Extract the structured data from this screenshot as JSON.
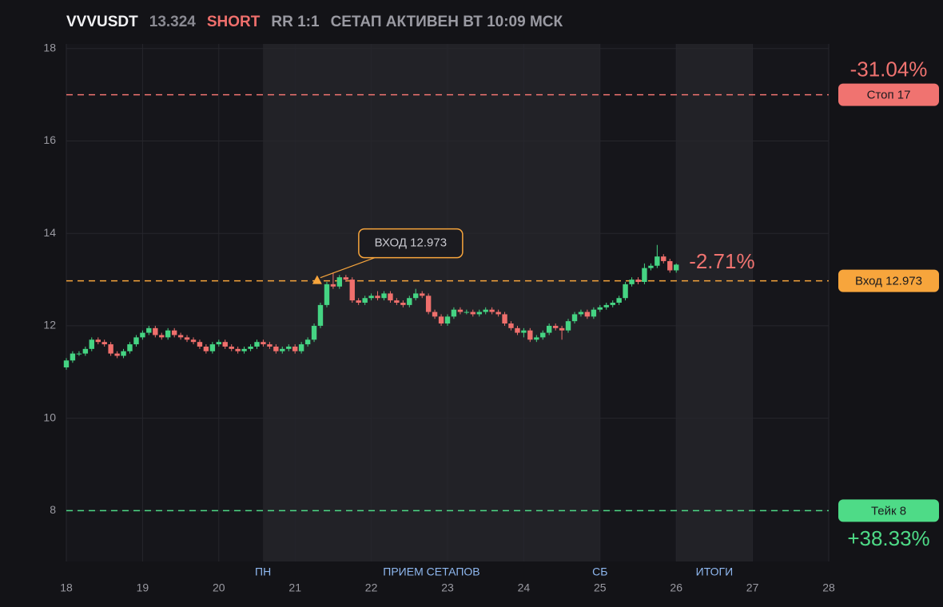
{
  "chart_data": {
    "type": "candlestick",
    "header": {
      "symbol": "VVVUSDT",
      "price": 13.324,
      "side": "SHORT",
      "rr": "RR 1:1",
      "status": "СЕТАП АКТИВЕН ВТ 10:09 МСК"
    },
    "xlim": [
      18,
      28
    ],
    "xticks": [
      18,
      19,
      20,
      21,
      22,
      23,
      24,
      25,
      26,
      27,
      28
    ],
    "ylim": [
      6.9,
      18.1
    ],
    "yticks": [
      8,
      10,
      12,
      14,
      16,
      18
    ],
    "grid": true,
    "up_color": "#45d483",
    "down_color": "#ef6f6c",
    "regions": [
      {
        "start": 20.58,
        "end": 25,
        "label": "ПРИЕМ СЕТАПОВ"
      },
      {
        "start": 26,
        "end": 27,
        "label": "ИТОГИ"
      }
    ],
    "markers": [
      {
        "x": 20.58,
        "label": "ПН"
      },
      {
        "x": 25,
        "label": "СБ"
      }
    ],
    "levels": [
      {
        "value": 17,
        "label": "Стоп 17",
        "color": "#f07370",
        "change": -31.04,
        "change_label": "-31.04%",
        "change_side": "above"
      },
      {
        "value": 12.973,
        "label": "Вход 12.973",
        "color": "#f7a53c"
      },
      {
        "value": 8,
        "label": "Тейк 8",
        "color": "#4edb87",
        "change": 38.33,
        "change_label": "+38.33%",
        "change_side": "below"
      }
    ],
    "entry": {
      "x": 21.29,
      "y": 12.973,
      "text": "ВХОД 12.973",
      "color": "#f7a53c"
    },
    "current_change": {
      "value": -2.71,
      "label": "-2.71%",
      "color": "#f07370"
    },
    "x": [
      18,
      18.083,
      18.167,
      18.25,
      18.333,
      18.417,
      18.5,
      18.583,
      18.667,
      18.75,
      18.833,
      18.917,
      19,
      19.083,
      19.167,
      19.25,
      19.333,
      19.417,
      19.5,
      19.583,
      19.667,
      19.75,
      19.833,
      19.917,
      20,
      20.083,
      20.167,
      20.25,
      20.333,
      20.417,
      20.5,
      20.583,
      20.667,
      20.75,
      20.833,
      20.917,
      21,
      21.083,
      21.167,
      21.25,
      21.333,
      21.417,
      21.5,
      21.583,
      21.667,
      21.75,
      21.833,
      21.917,
      22,
      22.083,
      22.167,
      22.25,
      22.333,
      22.417,
      22.5,
      22.583,
      22.667,
      22.75,
      22.833,
      22.917,
      23,
      23.083,
      23.167,
      23.25,
      23.333,
      23.417,
      23.5,
      23.583,
      23.667,
      23.75,
      23.833,
      23.917,
      24,
      24.083,
      24.167,
      24.25,
      24.333,
      24.417,
      24.5,
      24.583,
      24.667,
      24.75,
      24.833,
      24.917,
      25,
      25.083,
      25.167,
      25.25,
      25.333,
      25.417,
      25.5,
      25.583,
      25.667,
      25.75,
      25.833,
      25.917,
      26
    ],
    "open": [
      11.1,
      11.25,
      11.4,
      11.4,
      11.5,
      11.7,
      11.65,
      11.6,
      11.4,
      11.35,
      11.45,
      11.6,
      11.75,
      11.85,
      11.95,
      11.8,
      11.75,
      11.9,
      11.8,
      11.75,
      11.7,
      11.65,
      11.55,
      11.45,
      11.6,
      11.65,
      11.55,
      11.5,
      11.45,
      11.5,
      11.55,
      11.65,
      11.6,
      11.55,
      11.45,
      11.5,
      11.55,
      11.45,
      11.6,
      11.7,
      12.0,
      12.45,
      12.9,
      12.85,
      13.05,
      13.0,
      12.55,
      12.5,
      12.6,
      12.65,
      12.6,
      12.7,
      12.55,
      12.5,
      12.45,
      12.6,
      12.7,
      12.65,
      12.3,
      12.2,
      12.05,
      12.2,
      12.35,
      12.3,
      12.3,
      12.25,
      12.3,
      12.35,
      12.3,
      12.25,
      12.05,
      11.95,
      11.85,
      11.9,
      11.7,
      11.75,
      11.85,
      12.0,
      11.95,
      11.9,
      12.1,
      12.25,
      12.3,
      12.2,
      12.35,
      12.4,
      12.45,
      12.5,
      12.6,
      12.9,
      13.0,
      12.95,
      13.25,
      13.3,
      13.5,
      13.4,
      13.2
    ],
    "high": [
      11.3,
      11.45,
      11.45,
      11.55,
      11.75,
      11.75,
      11.7,
      11.65,
      11.45,
      11.5,
      11.65,
      11.8,
      11.9,
      12.0,
      12.0,
      11.85,
      11.95,
      11.95,
      11.85,
      11.8,
      11.75,
      11.7,
      11.6,
      11.65,
      11.7,
      11.7,
      11.6,
      11.55,
      11.55,
      11.6,
      11.7,
      11.7,
      11.65,
      11.6,
      11.55,
      11.6,
      11.6,
      11.65,
      11.75,
      12.05,
      12.5,
      12.95,
      13.15,
      13.1,
      13.1,
      13.05,
      12.6,
      12.65,
      12.7,
      12.75,
      12.75,
      12.75,
      12.6,
      12.55,
      12.65,
      12.8,
      12.75,
      12.7,
      12.35,
      12.25,
      12.25,
      12.4,
      12.4,
      12.35,
      12.35,
      12.35,
      12.4,
      12.4,
      12.35,
      12.3,
      12.1,
      12.0,
      11.95,
      11.95,
      11.8,
      11.9,
      12.05,
      12.05,
      12.0,
      12.15,
      12.3,
      12.35,
      12.35,
      12.4,
      12.45,
      12.5,
      12.55,
      12.65,
      12.95,
      13.05,
      13.05,
      13.35,
      13.35,
      13.75,
      13.55,
      13.45,
      13.35
    ],
    "low": [
      11.05,
      11.2,
      11.35,
      11.35,
      11.45,
      11.6,
      11.55,
      11.35,
      11.3,
      11.3,
      11.4,
      11.55,
      11.7,
      11.8,
      11.75,
      11.7,
      11.7,
      11.75,
      11.7,
      11.65,
      11.6,
      11.5,
      11.4,
      11.4,
      11.55,
      11.5,
      11.45,
      11.4,
      11.4,
      11.45,
      11.5,
      11.55,
      11.5,
      11.4,
      11.4,
      11.45,
      11.4,
      11.4,
      11.55,
      11.65,
      11.95,
      12.4,
      12.8,
      12.8,
      12.95,
      12.5,
      12.45,
      12.45,
      12.55,
      12.55,
      12.55,
      12.5,
      12.45,
      12.4,
      12.4,
      12.55,
      12.6,
      12.25,
      12.15,
      12.0,
      12.0,
      12.15,
      12.25,
      12.25,
      12.2,
      12.2,
      12.25,
      12.25,
      12.2,
      12.0,
      11.9,
      11.8,
      11.75,
      11.65,
      11.65,
      11.7,
      11.8,
      11.9,
      11.7,
      11.85,
      12.05,
      12.2,
      12.15,
      12.15,
      12.3,
      12.35,
      12.4,
      12.45,
      12.55,
      12.85,
      12.9,
      12.9,
      13.2,
      13.25,
      13.35,
      13.15,
      13.15
    ],
    "close": [
      11.25,
      11.4,
      11.4,
      11.5,
      11.7,
      11.65,
      11.6,
      11.4,
      11.35,
      11.45,
      11.6,
      11.75,
      11.85,
      11.95,
      11.8,
      11.75,
      11.9,
      11.8,
      11.75,
      11.7,
      11.65,
      11.55,
      11.45,
      11.6,
      11.65,
      11.55,
      11.5,
      11.45,
      11.5,
      11.55,
      11.65,
      11.6,
      11.55,
      11.45,
      11.5,
      11.55,
      11.45,
      11.6,
      11.7,
      12.0,
      12.45,
      12.9,
      12.85,
      13.05,
      13.0,
      12.55,
      12.5,
      12.6,
      12.65,
      12.6,
      12.7,
      12.55,
      12.5,
      12.45,
      12.6,
      12.7,
      12.65,
      12.3,
      12.2,
      12.05,
      12.2,
      12.35,
      12.3,
      12.3,
      12.25,
      12.3,
      12.35,
      12.3,
      12.25,
      12.05,
      11.95,
      11.85,
      11.9,
      11.7,
      11.75,
      11.85,
      12.0,
      11.95,
      11.9,
      12.1,
      12.25,
      12.3,
      12.2,
      12.35,
      12.4,
      12.45,
      12.5,
      12.6,
      12.9,
      13.0,
      12.95,
      13.25,
      13.3,
      13.5,
      13.4,
      13.2,
      13.324
    ]
  }
}
